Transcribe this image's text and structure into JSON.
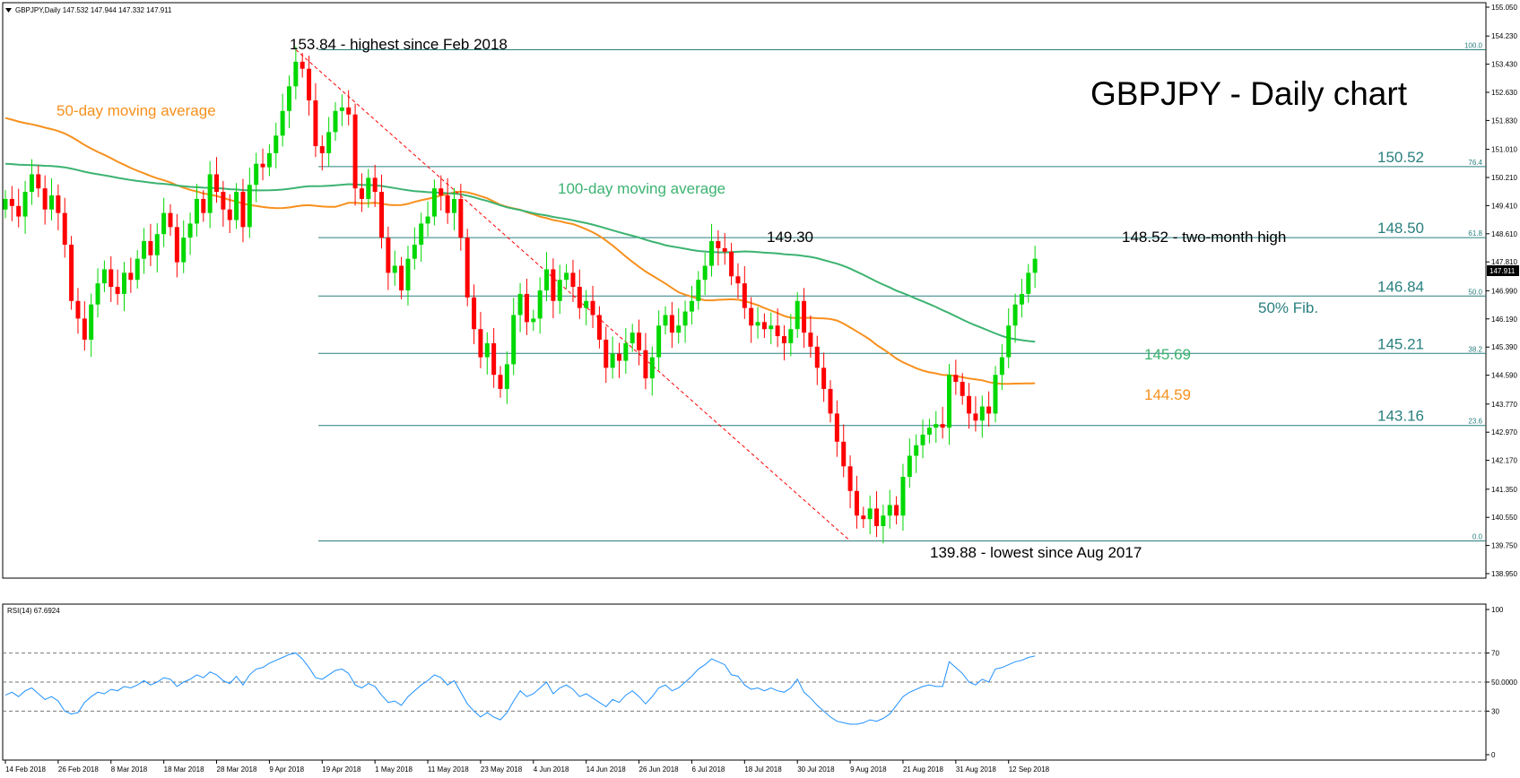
{
  "header": {
    "symbol_line": "GBPJPY,Daily  147.532 147.944 147.332 147.911",
    "rsi_line": "RSI(14) 67.6924",
    "chart_title": "GBPJPY - Daily chart",
    "current_price": "147.911"
  },
  "colors": {
    "bull": "#00d800",
    "bear": "#ff0000",
    "ma50": "#f7901e",
    "ma100": "#3cb371",
    "fib": "#2a7f7f",
    "rsi": "#1e90ff",
    "trend": "#ff0000"
  },
  "chart_data": [
    {
      "type": "candlestick",
      "title": "GBPJPY - Daily chart",
      "ylim": [
        138.95,
        155.05
      ],
      "y_ticks": [
        "155.050",
        "154.230",
        "153.430",
        "152.630",
        "151.830",
        "151.010",
        "150.210",
        "149.410",
        "148.610",
        "147.810",
        "146.990",
        "146.190",
        "145.390",
        "144.590",
        "143.770",
        "142.970",
        "142.170",
        "141.350",
        "140.550",
        "139.750",
        "138.950"
      ],
      "x_labels": [
        "14 Feb 2018",
        "26 Feb 2018",
        "8 Mar 2018",
        "18 Mar 2018",
        "28 Mar 2018",
        "9 Apr 2018",
        "19 Apr 2018",
        "1 May 2018",
        "11 May 2018",
        "23 May 2018",
        "4 Jun 2018",
        "14 Jun 2018",
        "26 Jun 2018",
        "6 Jul 2018",
        "18 Jul 2018",
        "30 Jul 2018",
        "9 Aug 2018",
        "21 Aug 2018",
        "31 Aug 2018",
        "12 Sep 2018"
      ],
      "x_label_index": [
        0,
        8,
        16,
        24,
        32,
        40,
        48,
        56,
        64,
        72,
        80,
        88,
        96,
        104,
        112,
        120,
        128,
        136,
        144,
        152
      ],
      "closes": [
        149.6,
        149.4,
        149.1,
        149.8,
        150.3,
        149.9,
        149.3,
        149.7,
        149.2,
        148.3,
        146.7,
        146.2,
        145.6,
        146.6,
        147.2,
        147.6,
        147.1,
        146.9,
        147.5,
        147.3,
        147.9,
        148.4,
        148.0,
        148.6,
        149.2,
        148.8,
        147.8,
        148.5,
        148.9,
        149.6,
        149.2,
        150.3,
        149.8,
        149.3,
        149.0,
        149.8,
        148.8,
        150.0,
        150.6,
        150.5,
        150.9,
        151.4,
        152.1,
        152.8,
        153.5,
        153.3,
        152.4,
        151.1,
        150.9,
        151.5,
        152.1,
        152.2,
        152.0,
        149.9,
        149.6,
        150.2,
        149.8,
        148.5,
        147.5,
        147.7,
        147.0,
        147.9,
        148.3,
        148.9,
        149.1,
        149.9,
        149.7,
        149.2,
        149.6,
        148.5,
        146.8,
        145.9,
        145.1,
        145.5,
        144.6,
        144.2,
        144.9,
        146.3,
        146.9,
        146.1,
        146.2,
        147.0,
        147.6,
        146.7,
        147.3,
        147.5,
        147.1,
        146.5,
        146.7,
        146.3,
        145.6,
        144.8,
        145.2,
        145.0,
        145.5,
        145.8,
        145.3,
        144.5,
        145.1,
        146.0,
        146.3,
        145.8,
        146.0,
        146.4,
        146.7,
        147.3,
        147.7,
        148.4,
        148.2,
        148.1,
        147.4,
        147.2,
        146.5,
        146.0,
        146.1,
        145.9,
        146.0,
        145.7,
        145.5,
        145.9,
        146.7,
        145.8,
        145.4,
        144.8,
        144.2,
        143.5,
        142.7,
        142.0,
        141.3,
        140.6,
        140.5,
        140.8,
        140.3,
        140.6,
        140.9,
        140.6,
        141.7,
        142.3,
        142.6,
        142.9,
        143.1,
        143.2,
        143.1,
        144.6,
        144.4,
        144.0,
        143.5,
        143.3,
        143.7,
        143.5,
        144.6,
        145.1,
        146.0,
        146.6,
        146.9,
        147.5,
        147.9
      ]
    },
    {
      "type": "line",
      "title": "RSI(14) 67.6924",
      "ylim": [
        0,
        100
      ],
      "y_ticks": [
        "100",
        "70",
        "50.0000",
        "30",
        "0"
      ],
      "values": [
        41,
        43,
        40,
        44,
        46,
        42,
        38,
        40,
        37,
        30,
        28,
        29,
        36,
        40,
        43,
        42,
        45,
        44,
        47,
        46,
        48,
        51,
        48,
        50,
        53,
        52,
        47,
        50,
        52,
        55,
        53,
        57,
        55,
        51,
        49,
        54,
        48,
        55,
        59,
        60,
        63,
        65,
        67,
        69,
        70,
        66,
        60,
        53,
        52,
        55,
        58,
        59,
        56,
        48,
        46,
        49,
        47,
        41,
        36,
        37,
        34,
        40,
        44,
        48,
        51,
        55,
        53,
        48,
        51,
        43,
        35,
        30,
        26,
        29,
        26,
        24,
        29,
        37,
        44,
        40,
        42,
        46,
        50,
        42,
        46,
        48,
        45,
        40,
        42,
        39,
        36,
        33,
        38,
        36,
        41,
        44,
        40,
        35,
        40,
        46,
        48,
        44,
        46,
        50,
        54,
        59,
        62,
        66,
        64,
        62,
        55,
        54,
        48,
        45,
        46,
        44,
        46,
        44,
        43,
        46,
        52,
        43,
        39,
        34,
        30,
        26,
        23,
        22,
        21,
        21,
        22,
        24,
        23,
        25,
        28,
        34,
        40,
        43,
        45,
        47,
        48,
        47,
        47,
        64,
        60,
        56,
        50,
        48,
        52,
        50,
        59,
        60,
        62,
        64,
        65,
        67,
        68
      ]
    }
  ],
  "annotations": {
    "high": "153.84 - highest since Feb 2018",
    "low": "139.88 - lowest since Aug 2017",
    "ma50": "50-day moving average",
    "ma100": "100-day moving average",
    "peak": "149.30",
    "two_month": "148.52 - two-month high",
    "fib50": "50% Fib.",
    "ma100_val": "145.69",
    "ma50_val": "144.59"
  },
  "fib_levels": [
    {
      "price": 153.84,
      "ratio": "100.0",
      "value": ""
    },
    {
      "price": 150.52,
      "ratio": "76.4",
      "value": "150.52"
    },
    {
      "price": 148.5,
      "ratio": "61.8",
      "value": "148.50"
    },
    {
      "price": 146.84,
      "ratio": "50.0",
      "value": "146.84"
    },
    {
      "price": 145.21,
      "ratio": "38.2",
      "value": "145.21"
    },
    {
      "price": 143.16,
      "ratio": "23.6",
      "value": "143.16"
    },
    {
      "price": 139.88,
      "ratio": "0.0",
      "value": ""
    }
  ]
}
